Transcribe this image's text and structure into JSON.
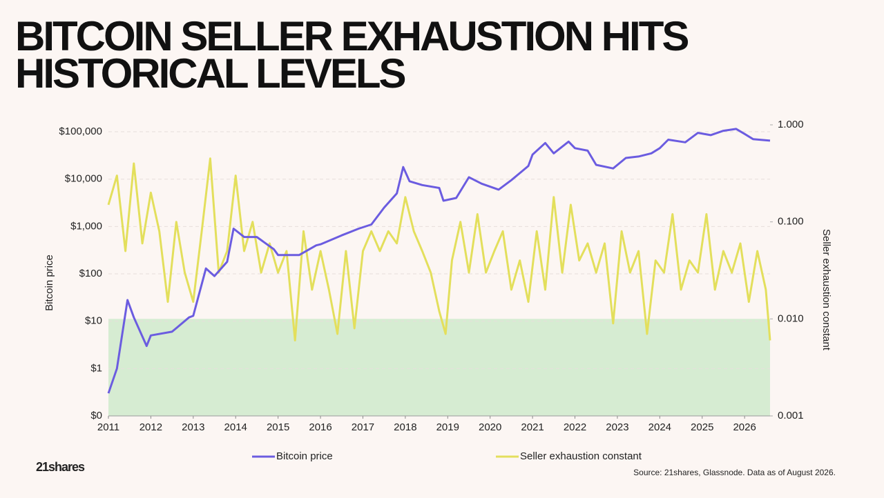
{
  "brand": "21shares",
  "chart_data": {
    "type": "line",
    "title": "BITCOIN SELLER EXHAUSTION HITS HISTORICAL LEVELS",
    "ylabel": "Bitcoin price",
    "y2label": "Seller exhaustion constant",
    "source": "Source: 21shares, Glassnode. Data as of August 2026.",
    "log_y": true,
    "log_y2": true,
    "grid": true,
    "legend": "bottom",
    "xlim": [
      2011,
      2026.6
    ],
    "xticks": [
      2011,
      2012,
      2013,
      2014,
      2015,
      2016,
      2017,
      2018,
      2019,
      2020,
      2021,
      2022,
      2023,
      2024,
      2025,
      2026
    ],
    "ylim": [
      0.1,
      140000
    ],
    "yticks": [
      {
        "value": 0.1,
        "label": "$0"
      },
      {
        "value": 1,
        "label": "$1"
      },
      {
        "value": 10,
        "label": "$10"
      },
      {
        "value": 100,
        "label": "$100"
      },
      {
        "value": 1000,
        "label": "$1,000"
      },
      {
        "value": 10000,
        "label": "$10,000"
      },
      {
        "value": 100000,
        "label": "$100,000"
      }
    ],
    "y2lim": [
      0.001,
      1
    ],
    "y2ticks": [
      {
        "value": 0.001,
        "label": "0.001"
      },
      {
        "value": 0.01,
        "label": "0.010"
      },
      {
        "value": 0.1,
        "label": "0.100"
      },
      {
        "value": 1,
        "label": "1.000"
      }
    ],
    "shade": {
      "axis": "y2",
      "range": [
        0.001,
        0.01
      ],
      "color": "#d6ecd2"
    },
    "series": [
      {
        "name": "Bitcoin price",
        "color": "#6b5ce0",
        "x": [
          2011.0,
          2011.2,
          2011.45,
          2011.6,
          2011.9,
          2012.0,
          2012.5,
          2012.9,
          2013.0,
          2013.3,
          2013.5,
          2013.8,
          2013.95,
          2014.2,
          2014.5,
          2014.9,
          2015.0,
          2015.5,
          2015.9,
          2016.0,
          2016.5,
          2016.9,
          2017.2,
          2017.5,
          2017.8,
          2017.95,
          2018.1,
          2018.4,
          2018.8,
          2018.9,
          2019.2,
          2019.5,
          2019.8,
          2020.2,
          2020.5,
          2020.9,
          2021.0,
          2021.3,
          2021.5,
          2021.85,
          2022.0,
          2022.3,
          2022.5,
          2022.9,
          2023.2,
          2023.5,
          2023.8,
          2024.0,
          2024.2,
          2024.6,
          2024.9,
          2025.2,
          2025.5,
          2025.8,
          2026.0,
          2026.2,
          2026.6
        ],
        "values": [
          0.3,
          1,
          28,
          12,
          3,
          5,
          6,
          12,
          13,
          130,
          90,
          180,
          900,
          600,
          600,
          330,
          250,
          250,
          400,
          420,
          650,
          900,
          1100,
          2500,
          5000,
          18000,
          9000,
          7500,
          6500,
          3500,
          4000,
          11000,
          8000,
          6000,
          9500,
          19000,
          33000,
          58000,
          35000,
          62000,
          45000,
          40000,
          20000,
          16800,
          28000,
          30000,
          35000,
          45000,
          68000,
          60000,
          95000,
          85000,
          105000,
          115000,
          90000,
          70000,
          65000
        ]
      },
      {
        "name": "Seller exhaustion constant",
        "color": "#e3df5c",
        "axis": "y2",
        "x": [
          2011.0,
          2011.2,
          2011.4,
          2011.6,
          2011.8,
          2012.0,
          2012.2,
          2012.4,
          2012.6,
          2012.8,
          2013.0,
          2013.2,
          2013.4,
          2013.6,
          2013.8,
          2014.0,
          2014.2,
          2014.4,
          2014.6,
          2014.8,
          2015.0,
          2015.2,
          2015.4,
          2015.6,
          2015.8,
          2016.0,
          2016.2,
          2016.4,
          2016.6,
          2016.8,
          2017.0,
          2017.2,
          2017.4,
          2017.6,
          2017.8,
          2018.0,
          2018.2,
          2018.4,
          2018.6,
          2018.8,
          2018.95,
          2019.1,
          2019.3,
          2019.5,
          2019.7,
          2019.9,
          2020.1,
          2020.3,
          2020.5,
          2020.7,
          2020.9,
          2021.1,
          2021.3,
          2021.5,
          2021.7,
          2021.9,
          2022.1,
          2022.3,
          2022.5,
          2022.7,
          2022.9,
          2023.1,
          2023.3,
          2023.5,
          2023.7,
          2023.9,
          2024.1,
          2024.3,
          2024.5,
          2024.7,
          2024.9,
          2025.1,
          2025.3,
          2025.5,
          2025.7,
          2025.9,
          2026.1,
          2026.3,
          2026.5,
          2026.6
        ],
        "values": [
          0.15,
          0.3,
          0.05,
          0.4,
          0.06,
          0.2,
          0.08,
          0.015,
          0.1,
          0.03,
          0.015,
          0.08,
          0.45,
          0.03,
          0.05,
          0.3,
          0.05,
          0.1,
          0.03,
          0.06,
          0.03,
          0.05,
          0.006,
          0.08,
          0.02,
          0.05,
          0.02,
          0.007,
          0.05,
          0.008,
          0.05,
          0.08,
          0.05,
          0.08,
          0.06,
          0.18,
          0.08,
          0.05,
          0.03,
          0.012,
          0.007,
          0.04,
          0.1,
          0.03,
          0.12,
          0.03,
          0.05,
          0.08,
          0.02,
          0.04,
          0.015,
          0.08,
          0.02,
          0.18,
          0.03,
          0.15,
          0.04,
          0.06,
          0.03,
          0.06,
          0.009,
          0.08,
          0.03,
          0.05,
          0.007,
          0.04,
          0.03,
          0.12,
          0.02,
          0.04,
          0.03,
          0.12,
          0.02,
          0.05,
          0.03,
          0.06,
          0.015,
          0.05,
          0.02,
          0.006
        ]
      }
    ]
  }
}
